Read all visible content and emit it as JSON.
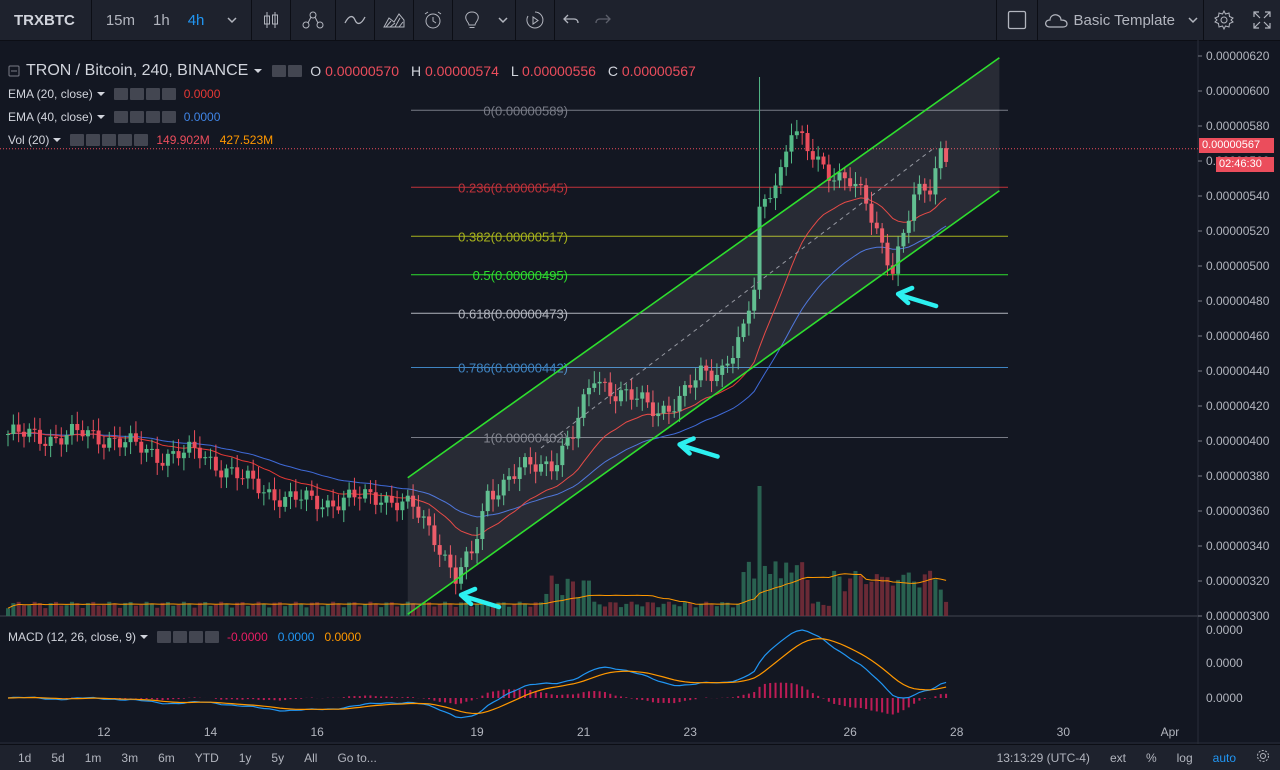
{
  "toolbar": {
    "symbol": "TRXBTC",
    "intervals": [
      "15m",
      "1h",
      "4h"
    ],
    "active_interval": "4h",
    "template_label": "Basic Template",
    "icons": [
      "candles-icon",
      "indicators-icon",
      "compare-icon",
      "bar-style-icon",
      "alert-icon",
      "idea-icon",
      "replay-icon",
      "undo-icon",
      "redo-icon",
      "layout-icon",
      "settings-icon",
      "fullscreen-icon"
    ]
  },
  "legend": {
    "title": "TRON / Bitcoin, 240, BINANCE",
    "o_label": "O",
    "o": "0.00000570",
    "h_label": "H",
    "h": "0.00000574",
    "l_label": "L",
    "l": "0.00000556",
    "c_label": "C",
    "c": "0.00000567",
    "ema20_label": "EMA (20, close)",
    "ema20_value": "0.0000",
    "ema40_label": "EMA (40, close)",
    "ema40_value": "0.0000",
    "vol_label": "Vol (20)",
    "vol_value1": "149.902M",
    "vol_value2": "427.523M",
    "macd_label": "MACD (12, 26, close, 9)",
    "macd_v1": "-0.0000",
    "macd_v2": "0.0000",
    "macd_v3": "0.0000"
  },
  "price_tags": {
    "last": "0.00000567",
    "countdown": "02:46:30"
  },
  "colors": {
    "up": "#53b987",
    "down": "#eb4d5c",
    "ema20": "#e53935",
    "ema40": "#3f6ad8",
    "channel": "#2ede2e",
    "arrow": "#2cf0f0",
    "macd": "#2196f3",
    "signal": "#ff9800",
    "hist": "#e91e63"
  },
  "chart_data": {
    "type": "candlestick",
    "symbol": "TRON / Bitcoin, 240, BINANCE",
    "y_axis_ticks": [
      "0.00000620",
      "0.00000600",
      "0.00000580",
      "0.00000560",
      "0.00000540",
      "0.00000520",
      "0.00000500",
      "0.00000480",
      "0.00000460",
      "0.00000440",
      "0.00000420",
      "0.00000400",
      "0.00000380",
      "0.00000360",
      "0.00000340",
      "0.00000320",
      "0.00000300"
    ],
    "ylim": [
      3e-06,
      6.2e-06
    ],
    "x_axis_ticks": [
      {
        "label": "12",
        "bar": 18
      },
      {
        "label": "14",
        "bar": 38
      },
      {
        "label": "16",
        "bar": 58
      },
      {
        "label": "19",
        "bar": 88
      },
      {
        "label": "21",
        "bar": 108
      },
      {
        "label": "23",
        "bar": 128
      },
      {
        "label": "26",
        "bar": 158
      },
      {
        "label": "28",
        "bar": 178
      },
      {
        "label": "30",
        "bar": 198
      },
      {
        "label": "Apr",
        "bar": 218
      }
    ],
    "fib_levels": [
      {
        "label": "0(0.00000589)",
        "value": 5.89e-06,
        "color": "#787b86"
      },
      {
        "label": "0.236(0.00000545)",
        "value": 5.45e-06,
        "color": "#c1323a"
      },
      {
        "label": "0.382(0.00000517)",
        "value": 5.17e-06,
        "color": "#a7b21c"
      },
      {
        "label": "0.5(0.00000495)",
        "value": 4.95e-06,
        "color": "#2ede2e"
      },
      {
        "label": "0.618(0.00000473)",
        "value": 4.73e-06,
        "color": "#b2b5be"
      },
      {
        "label": "0.786(0.00000442)",
        "value": 4.42e-06,
        "color": "#3f84c2"
      },
      {
        "label": "1(0.00000402)",
        "value": 4.02e-06,
        "color": "#787b86"
      }
    ],
    "channel": {
      "lower": [
        {
          "bar": 75,
          "y": 3.01e-06
        },
        {
          "bar": 186,
          "y": 5.43e-06
        }
      ],
      "upper": [
        {
          "bar": 75,
          "y": 3.79e-06
        },
        {
          "bar": 186,
          "y": 6.19e-06
        }
      ],
      "mid": [
        {
          "bar": 100,
          "y": 3.96e-06
        },
        {
          "bar": 174,
          "y": 5.68e-06
        }
      ]
    },
    "arrows": [
      {
        "bar": 85,
        "y": 3.12e-06
      },
      {
        "bar": 126,
        "y": 3.98e-06
      },
      {
        "bar": 167,
        "y": 4.84e-06
      }
    ],
    "volume_ylim": [
      0,
      1.0
    ],
    "macd_axis_ticks": [
      "0.0000",
      "0.0000",
      "0.0000"
    ]
  }
}
